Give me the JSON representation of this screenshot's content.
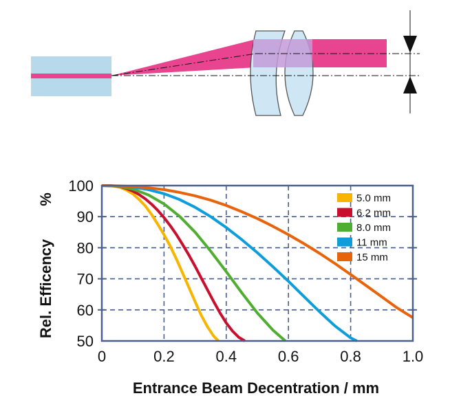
{
  "chart_data": {
    "type": "line",
    "title": "",
    "xlabel": "Entrance Beam Decentration / mm",
    "ylabel": "Rel. Efficency",
    "ylabel_unit": "%",
    "xlim": [
      0,
      1.0
    ],
    "ylim": [
      50,
      100
    ],
    "x_ticks": [
      "0",
      "0.2",
      "0.4",
      "0.6",
      "0.8",
      "1.0"
    ],
    "y_ticks": [
      "100",
      "90",
      "80",
      "70",
      "60",
      "50"
    ],
    "grid": true,
    "legend_position": "top-right",
    "series": [
      {
        "name": "5.0 mm",
        "color": "#f7b500",
        "x": [
          0,
          0.02,
          0.04,
          0.06,
          0.08,
          0.1,
          0.12,
          0.14,
          0.16,
          0.18,
          0.2,
          0.22,
          0.24,
          0.26,
          0.28,
          0.3,
          0.32,
          0.34,
          0.36,
          0.375
        ],
        "y": [
          100,
          100,
          99.8,
          99.4,
          98.5,
          97.3,
          95.5,
          93.4,
          90.7,
          87.5,
          84.2,
          80.5,
          76.3,
          71.8,
          67.2,
          62.6,
          58.2,
          54.5,
          51.5,
          50
        ]
      },
      {
        "name": "6.2 mm",
        "color": "#c8102e",
        "x": [
          0,
          0.02,
          0.04,
          0.06,
          0.08,
          0.1,
          0.12,
          0.14,
          0.16,
          0.18,
          0.2,
          0.22,
          0.24,
          0.26,
          0.28,
          0.3,
          0.32,
          0.34,
          0.36,
          0.38,
          0.4,
          0.42,
          0.44,
          0.46
        ],
        "y": [
          100,
          100,
          99.9,
          99.6,
          99.0,
          98.2,
          97.1,
          95.7,
          94.0,
          92.0,
          89.7,
          87.1,
          84.2,
          81.0,
          77.6,
          74.0,
          70.2,
          66.4,
          62.6,
          59.0,
          55.8,
          53.2,
          51.2,
          50
        ]
      },
      {
        "name": "8.0 mm",
        "color": "#4fae32",
        "x": [
          0,
          0.05,
          0.1,
          0.15,
          0.2,
          0.25,
          0.3,
          0.35,
          0.4,
          0.45,
          0.5,
          0.55,
          0.59
        ],
        "y": [
          100,
          99.8,
          98.9,
          97.0,
          94.1,
          90.1,
          85.0,
          78.9,
          72.3,
          65.5,
          59.0,
          53.5,
          50
        ]
      },
      {
        "name": "11  mm",
        "color": "#0d9ddb",
        "x": [
          0,
          0.05,
          0.1,
          0.15,
          0.2,
          0.25,
          0.3,
          0.35,
          0.4,
          0.45,
          0.5,
          0.55,
          0.6,
          0.65,
          0.7,
          0.75,
          0.8,
          0.82
        ],
        "y": [
          100,
          99.9,
          99.5,
          98.7,
          97.4,
          95.5,
          93.0,
          90.0,
          86.5,
          82.6,
          78.4,
          73.9,
          69.2,
          64.3,
          59.4,
          54.8,
          51.0,
          50
        ]
      },
      {
        "name": "15  mm",
        "color": "#e8640c",
        "x": [
          0,
          0.05,
          0.1,
          0.15,
          0.2,
          0.25,
          0.3,
          0.35,
          0.4,
          0.45,
          0.5,
          0.55,
          0.6,
          0.65,
          0.7,
          0.75,
          0.8,
          0.85,
          0.9,
          0.95,
          1.0
        ],
        "y": [
          100,
          99.9,
          99.7,
          99.3,
          98.7,
          97.8,
          96.7,
          95.3,
          93.6,
          91.6,
          89.4,
          86.9,
          84.2,
          81.3,
          78.2,
          74.9,
          71.4,
          67.8,
          64.2,
          60.6,
          57.5
        ]
      }
    ]
  },
  "diagram": {
    "colors": {
      "fiber": "#b7d9ec",
      "beam": "#e8448f",
      "lens": "#cfe6f5",
      "lens_edge": "#555555",
      "beam_in_lens": "#c39ad8"
    },
    "icons": [
      "offset-arrow-down-icon",
      "offset-arrow-up-icon"
    ]
  }
}
